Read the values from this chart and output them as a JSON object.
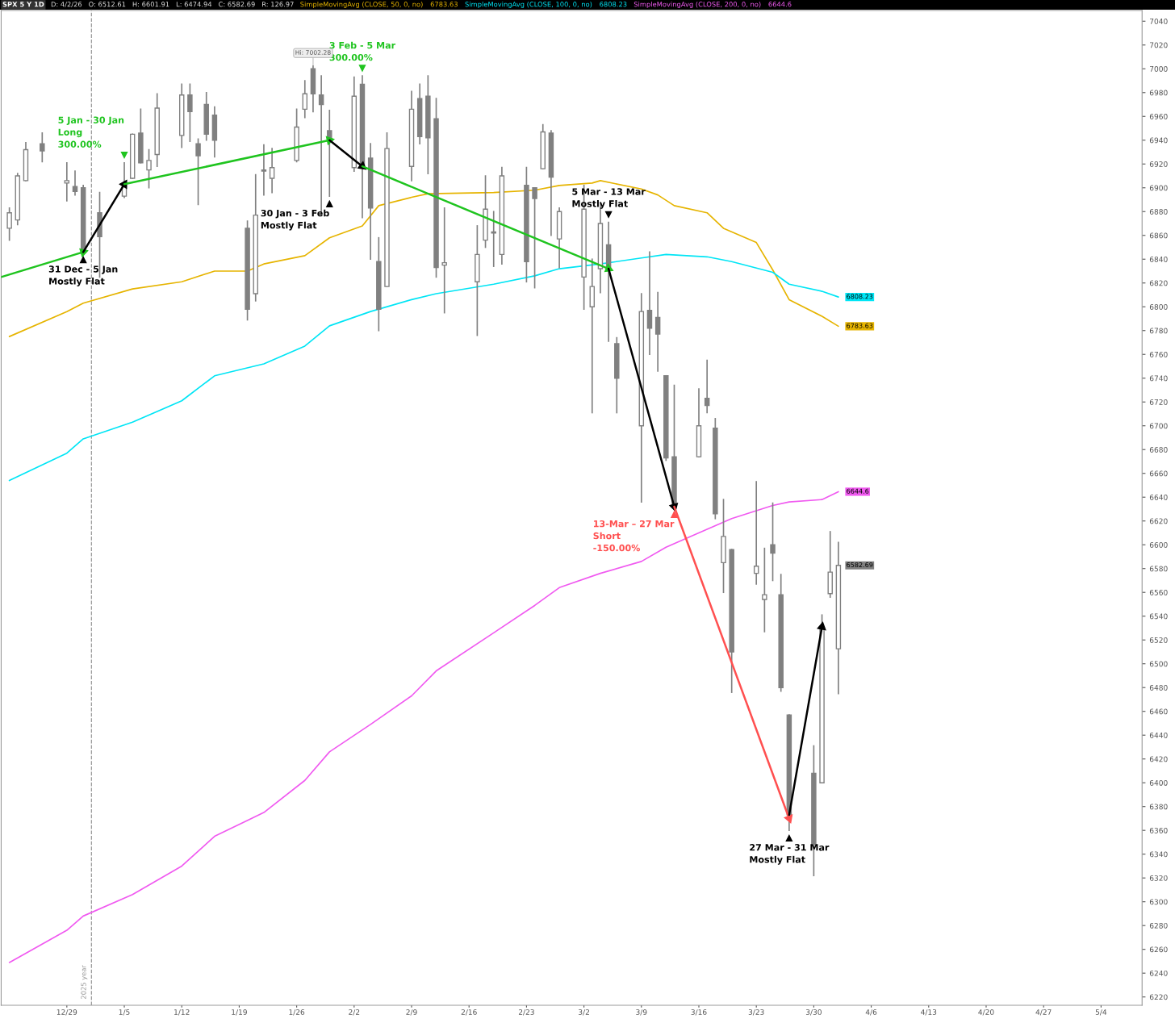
{
  "chart_data": {
    "type": "candlestick",
    "title": "SPX 5 Y 1D",
    "subtitle": "D: 4/2/26   O: 6512.61   H: 6601.91   L: 6474.94   C: 6582.69   R: 126.97",
    "xlim": [
      "2025-12-21",
      "2026-05-09"
    ],
    "xticks": [
      {
        "value": "2025-12-29",
        "label": "12/29"
      },
      {
        "value": "2026-01-05",
        "label": "1/5"
      },
      {
        "value": "2026-01-12",
        "label": "1/12"
      },
      {
        "value": "2026-01-19",
        "label": "1/19"
      },
      {
        "value": "2026-01-26",
        "label": "1/26"
      },
      {
        "value": "2026-02-02",
        "label": "2/2"
      },
      {
        "value": "2026-02-09",
        "label": "2/9"
      },
      {
        "value": "2026-02-16",
        "label": "2/16"
      },
      {
        "value": "2026-02-23",
        "label": "2/23"
      },
      {
        "value": "2026-03-02",
        "label": "3/2"
      },
      {
        "value": "2026-03-09",
        "label": "3/9"
      },
      {
        "value": "2026-03-16",
        "label": "3/16"
      },
      {
        "value": "2026-03-23",
        "label": "3/23"
      },
      {
        "value": "2026-03-30",
        "label": "3/30"
      },
      {
        "value": "2026-04-06",
        "label": "4/6"
      },
      {
        "value": "2026-04-13",
        "label": "4/13"
      },
      {
        "value": "2026-04-20",
        "label": "4/20"
      },
      {
        "value": "2026-04-27",
        "label": "4/27"
      },
      {
        "value": "2026-05-04",
        "label": "5/4"
      }
    ],
    "ylim": [
      6213,
      7049
    ],
    "yticks": [
      6220,
      6240,
      6260,
      6280,
      6300,
      6320,
      6340,
      6360,
      6380,
      6400,
      6420,
      6440,
      6460,
      6480,
      6500,
      6520,
      6540,
      6560,
      6580,
      6600,
      6620,
      6640,
      6660,
      6680,
      6700,
      6720,
      6740,
      6760,
      6780,
      6800,
      6820,
      6840,
      6860,
      6880,
      6900,
      6920,
      6940,
      6960,
      6980,
      7000,
      7020,
      7040
    ],
    "ref_lines": [
      {
        "axis": "x",
        "value": "2026-01-01",
        "label": "2025 year",
        "color": "#999999",
        "line_style": "dashed"
      }
    ],
    "series": [
      {
        "type": "line",
        "name": "SimpleMovingAvg (CLOSE, 50, 0, no)",
        "color": "#e6b400",
        "x": [
          "2025-12-22",
          "2025-12-29",
          "2025-12-31",
          "2026-01-06",
          "2026-01-12",
          "2026-01-16",
          "2026-01-20",
          "2026-01-22",
          "2026-01-27",
          "2026-01-30",
          "2026-02-03",
          "2026-02-05",
          "2026-02-09",
          "2026-02-11",
          "2026-02-19",
          "2026-02-24",
          "2026-02-27",
          "2026-03-03",
          "2026-03-04",
          "2026-03-09",
          "2026-03-11",
          "2026-03-13",
          "2026-03-17",
          "2026-03-19",
          "2026-03-23",
          "2026-03-25",
          "2026-03-27",
          "2026-03-31",
          "2026-04-02"
        ],
        "values": [
          6775,
          6796,
          6803,
          6815,
          6821,
          6830,
          6830,
          6836,
          6843,
          6858,
          6868,
          6885,
          6892,
          6895,
          6896,
          6898,
          6902,
          6904,
          6906,
          6899,
          6894,
          6885,
          6879,
          6866,
          6854,
          6831,
          6806,
          6792,
          6783.63
        ],
        "value_labels": [
          null,
          null,
          null,
          null,
          null,
          null,
          null,
          null,
          null,
          null,
          null,
          null,
          null,
          null,
          null,
          null,
          null,
          null,
          null,
          null,
          null,
          null,
          null,
          null,
          null,
          null,
          null,
          null,
          "6783.63"
        ]
      },
      {
        "type": "line",
        "name": "SimpleMovingAvg (CLOSE, 100, 0, no)",
        "color": "#00e5f5",
        "x": [
          "2025-12-22",
          "2025-12-29",
          "2025-12-31",
          "2026-01-06",
          "2026-01-12",
          "2026-01-16",
          "2026-01-22",
          "2026-01-27",
          "2026-01-30",
          "2026-02-04",
          "2026-02-09",
          "2026-02-12",
          "2026-02-19",
          "2026-02-24",
          "2026-02-27",
          "2026-03-04",
          "2026-03-09",
          "2026-03-12",
          "2026-03-17",
          "2026-03-20",
          "2026-03-25",
          "2026-03-27",
          "2026-03-31",
          "2026-04-02"
        ],
        "values": [
          6654,
          6677,
          6689,
          6703,
          6721,
          6742,
          6752,
          6767,
          6784,
          6796,
          6806,
          6811,
          6819,
          6826,
          6832,
          6836,
          6841,
          6844,
          6842,
          6838,
          6829,
          6819,
          6813,
          6808.23
        ],
        "value_labels": [
          null,
          null,
          null,
          null,
          null,
          null,
          null,
          null,
          null,
          null,
          null,
          null,
          null,
          null,
          null,
          null,
          null,
          null,
          null,
          null,
          null,
          null,
          null,
          "6808.23"
        ]
      },
      {
        "type": "line",
        "name": "SimpleMovingAvg (CLOSE, 200, 0, no)",
        "color": "#f05af0",
        "x": [
          "2025-12-22",
          "2025-12-29",
          "2025-12-31",
          "2026-01-06",
          "2026-01-12",
          "2026-01-16",
          "2026-01-22",
          "2026-01-27",
          "2026-01-30",
          "2026-02-04",
          "2026-02-09",
          "2026-02-12",
          "2026-02-19",
          "2026-02-24",
          "2026-02-27",
          "2026-03-04",
          "2026-03-09",
          "2026-03-12",
          "2026-03-17",
          "2026-03-20",
          "2026-03-25",
          "2026-03-27",
          "2026-03-31",
          "2026-04-02"
        ],
        "values": [
          6249,
          6276,
          6288,
          6306,
          6330,
          6355,
          6375,
          6402,
          6426,
          6449,
          6473,
          6494,
          6526,
          6549,
          6564,
          6576,
          6586,
          6598,
          6613,
          6622,
          6633,
          6636,
          6638,
          6644.6
        ],
        "value_labels": [
          null,
          null,
          null,
          null,
          null,
          null,
          null,
          null,
          null,
          null,
          null,
          null,
          null,
          null,
          null,
          null,
          null,
          null,
          null,
          null,
          null,
          null,
          null,
          "6644.6"
        ]
      },
      {
        "type": "line",
        "color": "#1fc41f",
        "marker": "triangle",
        "x": [
          "2025-12-21",
          "2025-12-31"
        ],
        "values": [
          6825,
          6846
        ]
      },
      {
        "type": "line",
        "color": "#000000",
        "marker": "triangle",
        "x": [
          "2025-12-31",
          "2026-01-05"
        ],
        "values": [
          6846,
          6903
        ]
      },
      {
        "type": "line",
        "color": "#1fc41f",
        "marker": "triangle",
        "x": [
          "2026-01-05",
          "2026-01-30"
        ],
        "values": [
          6903,
          6940
        ]
      },
      {
        "type": "line",
        "color": "#000000",
        "marker": "triangle",
        "x": [
          "2026-01-30",
          "2026-02-03"
        ],
        "values": [
          6940,
          6918
        ]
      },
      {
        "type": "line",
        "color": "#1fc41f",
        "marker": "triangle",
        "x": [
          "2026-02-03",
          "2026-03-05"
        ],
        "values": [
          6918,
          6832
        ]
      },
      {
        "type": "line",
        "color": "#000000",
        "marker": "triangle",
        "x": [
          "2026-03-05",
          "2026-03-13"
        ],
        "values": [
          6832,
          6632
        ]
      },
      {
        "type": "line",
        "color": "#ff5050",
        "marker": "triangle",
        "x": [
          "2026-03-13",
          "2026-03-27"
        ],
        "values": [
          6632,
          6370
        ]
      },
      {
        "type": "line",
        "color": "#000000",
        "marker": "triangle",
        "x": [
          "2026-03-27",
          "2026-03-31"
        ],
        "values": [
          6373,
          6531
        ]
      },
      {
        "color": "#808080",
        "x": [
          "2025-12-22",
          "2025-12-23",
          "2025-12-24",
          "2025-12-26",
          "2025-12-29",
          "2025-12-30",
          "2025-12-31",
          "2026-01-02",
          "2026-01-05",
          "2026-01-06",
          "2026-01-07",
          "2026-01-08",
          "2026-01-09",
          "2026-01-12",
          "2026-01-13",
          "2026-01-14",
          "2026-01-15",
          "2026-01-16",
          "2026-01-20",
          "2026-01-21",
          "2026-01-22",
          "2026-01-23",
          "2026-01-26",
          "2026-01-27",
          "2026-01-28",
          "2026-01-29",
          "2026-01-30",
          "2026-02-02",
          "2026-02-03",
          "2026-02-04",
          "2026-02-05",
          "2026-02-06",
          "2026-02-09",
          "2026-02-10",
          "2026-02-11",
          "2026-02-12",
          "2026-02-13",
          "2026-02-17",
          "2026-02-18",
          "2026-02-19",
          "2026-02-20",
          "2026-02-23",
          "2026-02-24",
          "2026-02-25",
          "2026-02-26",
          "2026-02-27",
          "2026-03-02",
          "2026-03-03",
          "2026-03-04",
          "2026-03-05",
          "2026-03-06",
          "2026-03-09",
          "2026-03-10",
          "2026-03-11",
          "2026-03-12",
          "2026-03-13",
          "2026-03-16",
          "2026-03-17",
          "2026-03-18",
          "2026-03-19",
          "2026-03-20",
          "2026-03-23",
          "2026-03-24",
          "2026-03-25",
          "2026-03-26",
          "2026-03-27",
          "2026-03-30",
          "2026-03-31",
          "2026-04-01",
          "2026-04-02"
        ],
        "ohlc": [
          [
            6866,
            6883,
            6856,
            6879
          ],
          [
            6873,
            6912,
            6869,
            6910
          ],
          [
            6906,
            6938,
            6906,
            6932
          ],
          [
            6937,
            6946,
            6922,
            6931
          ],
          [
            6904,
            6921,
            6889,
            6906
          ],
          [
            6901,
            6914,
            6894,
            6897
          ],
          [
            6900,
            6902,
            6846,
            6846
          ],
          [
            6879,
            6896,
            6825,
            6859
          ],
          [
            6893,
            6921,
            6892,
            6903
          ],
          [
            6908,
            6945,
            6908,
            6945
          ],
          [
            6946,
            6966,
            6921,
            6921
          ],
          [
            6915,
            6932,
            6900,
            6923
          ],
          [
            6928,
            6979,
            6918,
            6967
          ],
          [
            6944,
            6987,
            6934,
            6978
          ],
          [
            6978,
            6987,
            6939,
            6964
          ],
          [
            6937,
            6941,
            6886,
            6927
          ],
          [
            6970,
            6980,
            6940,
            6945
          ],
          [
            6961,
            6968,
            6926,
            6940
          ],
          [
            6866,
            6872,
            6789,
            6798
          ],
          [
            6811,
            6911,
            6805,
            6877
          ],
          [
            6915,
            6936,
            6894,
            6914
          ],
          [
            6908,
            6933,
            6896,
            6917
          ],
          [
            6923,
            6966,
            6922,
            6951
          ],
          [
            6966,
            6990,
            6959,
            6979
          ],
          [
            7000,
            7002.28,
            6964,
            6979
          ],
          [
            6978,
            6994,
            6877,
            6970
          ],
          [
            6948,
            6965,
            6893,
            6940
          ],
          [
            6917,
            6993,
            6914,
            6977
          ],
          [
            6987,
            6994,
            6875,
            6918
          ],
          [
            6925,
            6937,
            6840,
            6883
          ],
          [
            6838,
            6858,
            6780,
            6798
          ],
          [
            6817,
            6946,
            6817,
            6933
          ],
          [
            6918,
            6981,
            6906,
            6966
          ],
          [
            6975,
            6987,
            6937,
            6943
          ],
          [
            6977,
            6994,
            6912,
            6942
          ],
          [
            6958,
            6975,
            6825,
            6833
          ],
          [
            6835,
            6883,
            6795,
            6837
          ],
          [
            6821,
            6868,
            6776,
            6844
          ],
          [
            6856,
            6910,
            6850,
            6882
          ],
          [
            6862,
            6880,
            6834,
            6863
          ],
          [
            6844,
            6917,
            6836,
            6910
          ],
          [
            6902,
            6917,
            6821,
            6838
          ],
          [
            6900,
            6900,
            6816,
            6891
          ],
          [
            6916,
            6953,
            6916,
            6947
          ],
          [
            6946,
            6948,
            6860,
            6909
          ],
          [
            6857,
            6883,
            6833,
            6880
          ],
          [
            6825,
            6902,
            6798,
            6882
          ],
          [
            6800,
            6840,
            6711,
            6817
          ],
          [
            6832,
            6887,
            6812,
            6870
          ],
          [
            6852,
            6871,
            6771,
            6832
          ],
          [
            6769,
            6774,
            6711,
            6740
          ],
          [
            6700,
            6811,
            6636,
            6796
          ],
          [
            6797,
            6846,
            6760,
            6782
          ],
          [
            6791,
            6812,
            6746,
            6777
          ],
          [
            6742,
            6742,
            6671,
            6673
          ],
          [
            6674,
            6734,
            6632,
            6632
          ],
          [
            6674,
            6731,
            6674,
            6700
          ],
          [
            6723,
            6755,
            6711,
            6717
          ],
          [
            6698,
            6706,
            6622,
            6626
          ],
          [
            6585,
            6638,
            6560,
            6607
          ],
          [
            6596,
            6596,
            6476,
            6510
          ],
          [
            6576,
            6653,
            6567,
            6582
          ],
          [
            6554,
            6597,
            6527,
            6558
          ],
          [
            6600,
            6635,
            6570,
            6593
          ],
          [
            6558,
            6575,
            6477,
            6480
          ],
          [
            6457,
            6457,
            6360,
            6373
          ],
          [
            6408,
            6431,
            6322,
            6348
          ],
          [
            6400,
            6541,
            6400,
            6531
          ],
          [
            6559,
            6611,
            6556,
            6577
          ],
          [
            6512.61,
            6601.91,
            6474.94,
            6582.69
          ]
        ],
        "value_labels": [
          null,
          null,
          null,
          null,
          null,
          null,
          null,
          null,
          null,
          null,
          null,
          null,
          null,
          null,
          null,
          null,
          null,
          null,
          null,
          null,
          null,
          null,
          null,
          null,
          null,
          null,
          null,
          null,
          null,
          null,
          null,
          null,
          null,
          null,
          null,
          null,
          null,
          null,
          null,
          null,
          null,
          null,
          null,
          null,
          null,
          null,
          null,
          null,
          null,
          null,
          null,
          null,
          null,
          null,
          null,
          null,
          null,
          null,
          null,
          null,
          null,
          null,
          null,
          null,
          null,
          null,
          null,
          null,
          null,
          "6582.69"
        ]
      }
    ],
    "annotations": [
      {
        "text": "31 Dec - 5 Jan\nMostly Flat",
        "x": "2025-12-31",
        "y": 6846
      },
      {
        "text": "5 Jan - 30 Jan\nLong\n300.00%",
        "x": "2026-01-05",
        "y": 6921
      },
      {
        "text": "30 Jan - 3 Feb\nMostly Flat",
        "x": "2026-01-30",
        "y": 6893
      },
      {
        "text": "3 Feb - 5 Mar\n300.00%",
        "x": "2026-02-03",
        "y": 6994
      },
      {
        "text": "5 Mar - 13 Mar\nMostly Flat",
        "x": "2026-03-05",
        "y": 6871
      },
      {
        "text": "13-Mar – 27 Mar\nShort\n-150.00%",
        "x": "2026-03-13",
        "y": 6632
      },
      {
        "text": "27 Mar - 31 Mar\nMostly Flat",
        "x": "2026-03-27",
        "y": 6360
      },
      {
        "text": "Hi: 7002.28",
        "x": "2026-01-28",
        "y": 7002.28
      }
    ]
  }
}
